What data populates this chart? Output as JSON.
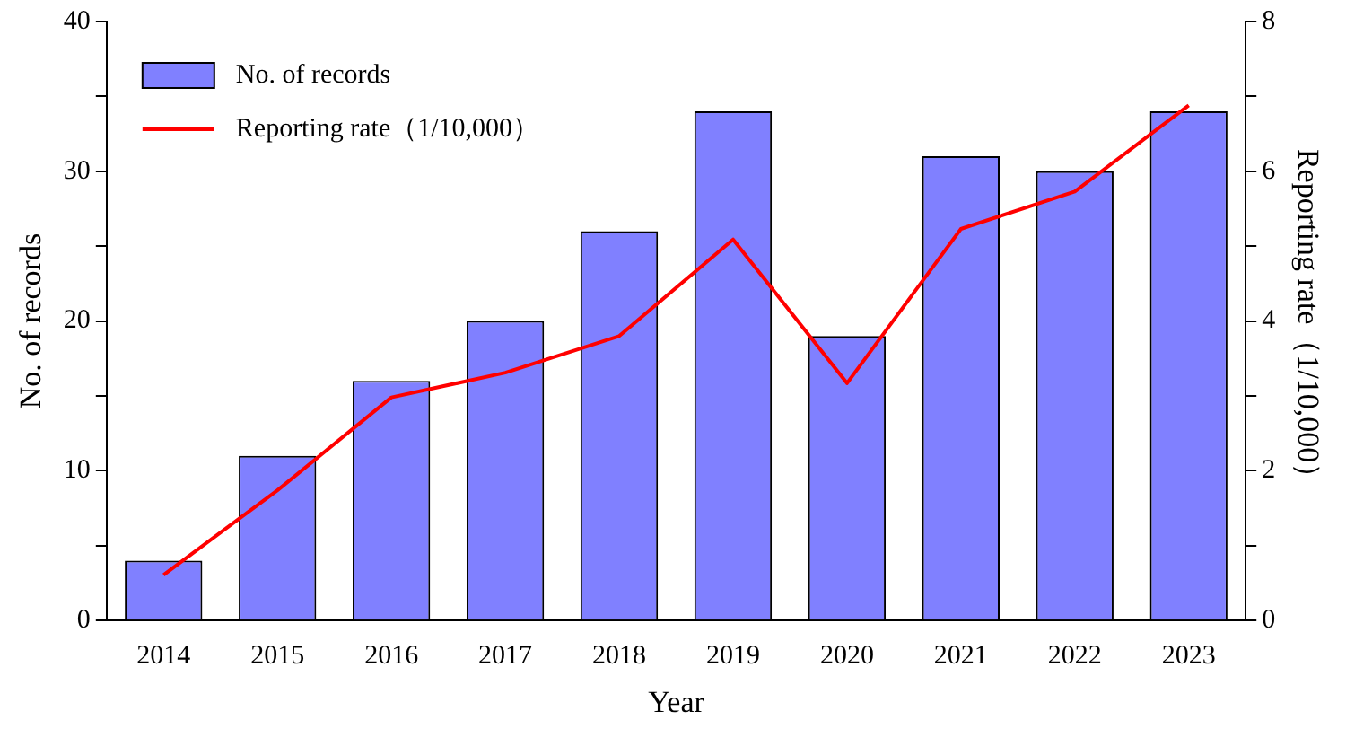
{
  "chart_data": {
    "type": "bar",
    "xlabel": "Year",
    "ylabel": "No. of records",
    "y2label": "Reporting rate（1/10,000）",
    "categories": [
      "2014",
      "2015",
      "2016",
      "2017",
      "2018",
      "2019",
      "2020",
      "2021",
      "2022",
      "2023"
    ],
    "series": [
      {
        "name": "No. of records",
        "color": "#8080ff",
        "values": [
          4,
          11,
          16,
          20,
          26,
          34,
          19,
          31,
          30,
          34
        ]
      },
      {
        "name": "Reporting rate（1/10,000）",
        "type": "line",
        "axis": "y2",
        "color": "#ff0000",
        "values": [
          0.61,
          1.74,
          2.98,
          3.31,
          3.8,
          5.09,
          3.17,
          5.23,
          5.73,
          6.88
        ]
      }
    ],
    "ylim": [
      0,
      40
    ],
    "yticks": [
      0,
      {
        "value": 5,
        "label": null
      },
      10,
      {
        "value": 15,
        "label": null
      },
      20,
      {
        "value": 25,
        "label": null
      },
      30,
      {
        "value": 35,
        "label": null
      },
      40
    ],
    "y2lim": [
      0,
      8
    ],
    "y2ticks": [
      0,
      {
        "value": 1,
        "label": null
      },
      2,
      {
        "value": 3,
        "label": null
      },
      4,
      {
        "value": 5,
        "label": null
      },
      6,
      {
        "value": 7,
        "label": null
      },
      8
    ],
    "grid": false,
    "legend": "top left",
    "marker": "none",
    "line_style": "solid"
  }
}
